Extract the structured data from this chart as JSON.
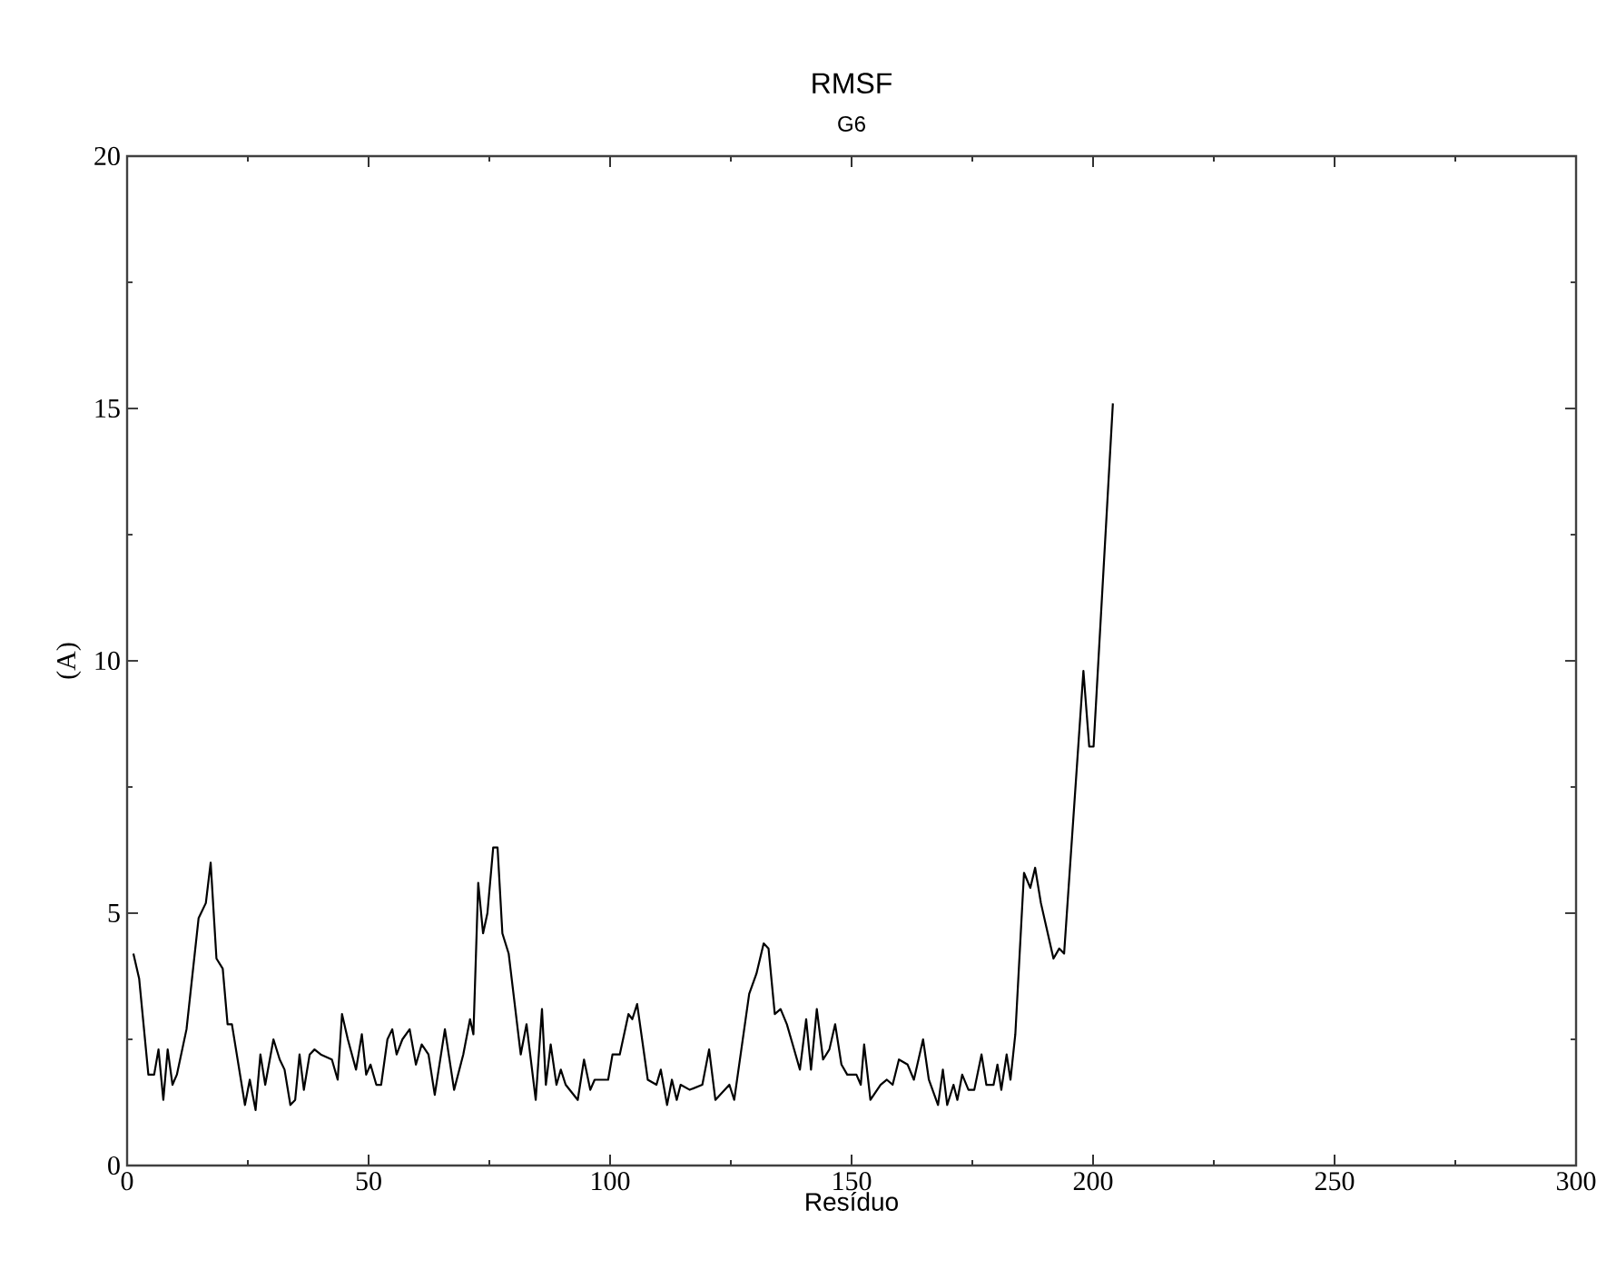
{
  "chart_data": {
    "type": "line",
    "title": "RMSF",
    "subtitle": "G6",
    "xlabel": "Resíduo",
    "ylabel": "(A)",
    "xlim": [
      0,
      300
    ],
    "ylim": [
      0,
      20
    ],
    "xticks": [
      0,
      50,
      100,
      150,
      200,
      250,
      300
    ],
    "yticks": [
      0,
      5,
      10,
      15,
      20
    ],
    "grid": false,
    "marker": "none",
    "line_style": "solid",
    "series": [
      {
        "color": "#000000",
        "x": [
          1.3,
          2.5,
          4.4,
          5.6,
          6.5,
          7.5,
          8.4,
          9.4,
          10.3,
          12.3,
          14.8,
          16.3,
          17.3,
          18.5,
          19.8,
          20.8,
          21.7,
          24.4,
          25.4,
          26.6,
          27.6,
          28.6,
          30.3,
          31.6,
          32.6,
          33.8,
          34.8,
          35.7,
          36.6,
          37.8,
          38.8,
          40.1,
          42.4,
          43.6,
          44.5,
          45.7,
          47.4,
          48.6,
          49.5,
          50.4,
          51.6,
          52.6,
          53.9,
          54.9,
          55.8,
          57.0,
          58.5,
          59.8,
          61.0,
          62.4,
          63.7,
          65.8,
          67.7,
          69.6,
          71.0,
          71.7,
          72.7,
          73.7,
          74.6,
          75.8,
          76.7,
          77.7,
          79.0,
          81.5,
          82.7,
          84.6,
          85.9,
          86.7,
          87.7,
          88.9,
          89.8,
          90.8,
          93.3,
          94.6,
          95.9,
          96.8,
          99.6,
          100.5,
          102.0,
          103.8,
          104.6,
          105.6,
          107.8,
          109.6,
          110.5,
          111.8,
          112.8,
          113.8,
          114.6,
          116.5,
          119.1,
          120.5,
          121.8,
          124.7,
          125.7,
          128.8,
          130.3,
          131.8,
          132.8,
          134.1,
          135.3,
          136.6,
          137.8,
          139.3,
          140.6,
          141.6,
          142.8,
          144.1,
          145.4,
          146.6,
          147.9,
          149.1,
          151.0,
          151.9,
          152.6,
          153.9,
          156.0,
          157.3,
          158.5,
          159.8,
          161.6,
          162.9,
          164.8,
          166.0,
          167.9,
          168.9,
          169.8,
          171.1,
          171.9,
          172.9,
          174.2,
          175.4,
          176.9,
          177.9,
          179.4,
          180.2,
          181.0,
          182.1,
          182.9,
          183.9,
          185.7,
          187.0,
          188.0,
          189.2,
          191.8,
          193.0,
          194.0,
          198.0,
          199.2,
          200.1,
          204.1
        ],
        "values": [
          4.2,
          3.7,
          1.8,
          1.8,
          2.3,
          1.3,
          2.3,
          1.6,
          1.8,
          2.7,
          4.9,
          5.2,
          6.0,
          4.1,
          3.9,
          2.8,
          2.8,
          1.2,
          1.7,
          1.1,
          2.2,
          1.6,
          2.5,
          2.1,
          1.9,
          1.2,
          1.3,
          2.2,
          1.5,
          2.2,
          2.3,
          2.2,
          2.1,
          1.7,
          3.0,
          2.5,
          1.9,
          2.6,
          1.8,
          2.0,
          1.6,
          1.6,
          2.5,
          2.7,
          2.2,
          2.5,
          2.7,
          2.0,
          2.4,
          2.2,
          1.4,
          2.7,
          1.5,
          2.2,
          2.9,
          2.6,
          5.6,
          4.6,
          5.0,
          6.3,
          6.3,
          4.6,
          4.2,
          2.2,
          2.8,
          1.3,
          3.1,
          1.6,
          2.4,
          1.6,
          1.9,
          1.6,
          1.3,
          2.1,
          1.5,
          1.7,
          1.7,
          2.2,
          2.2,
          3.0,
          2.9,
          3.2,
          1.7,
          1.6,
          1.9,
          1.2,
          1.7,
          1.3,
          1.6,
          1.5,
          1.6,
          2.3,
          1.3,
          1.6,
          1.3,
          3.4,
          3.8,
          4.4,
          4.3,
          3.0,
          3.1,
          2.8,
          2.4,
          1.9,
          2.9,
          1.9,
          3.1,
          2.1,
          2.3,
          2.8,
          2.0,
          1.8,
          1.8,
          1.6,
          2.4,
          1.3,
          1.6,
          1.7,
          1.6,
          2.1,
          2.0,
          1.7,
          2.5,
          1.7,
          1.2,
          1.9,
          1.2,
          1.6,
          1.3,
          1.8,
          1.5,
          1.5,
          2.2,
          1.6,
          1.6,
          2.0,
          1.5,
          2.2,
          1.7,
          2.6,
          5.8,
          5.5,
          5.9,
          5.2,
          4.1,
          4.3,
          4.2,
          9.8,
          8.3,
          8.3,
          15.1
        ]
      }
    ]
  }
}
